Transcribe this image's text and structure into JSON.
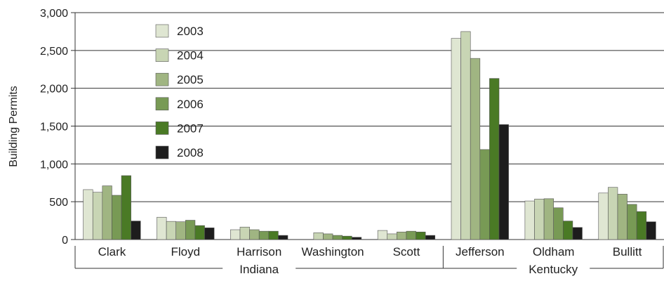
{
  "chart_data": {
    "type": "bar",
    "ylabel": "Building Permits",
    "ylim": [
      0,
      3000
    ],
    "yticks": [
      0,
      500,
      1000,
      1500,
      2000,
      2500,
      3000
    ],
    "ytick_labels": [
      "0",
      "500",
      "1,000",
      "1,500",
      "2,000",
      "2,500",
      "3,000"
    ],
    "grid": true,
    "legend_position": "top-left",
    "categories": [
      "Clark",
      "Floyd",
      "Harrison",
      "Washington",
      "Scott",
      "Jefferson",
      "Oldham",
      "Bullitt"
    ],
    "groups": [
      {
        "label": "Indiana",
        "categories": [
          "Clark",
          "Floyd",
          "Harrison",
          "Washington",
          "Scott"
        ]
      },
      {
        "label": "Kentucky",
        "categories": [
          "Jefferson",
          "Oldham",
          "Bullitt"
        ]
      }
    ],
    "series": [
      {
        "name": "2003",
        "color": "#dfe6d2",
        "values": [
          660,
          295,
          130,
          0,
          120,
          2660,
          510,
          615
        ]
      },
      {
        "name": "2004",
        "color": "#c8d5b4",
        "values": [
          625,
          240,
          165,
          90,
          75,
          2750,
          535,
          690
        ]
      },
      {
        "name": "2005",
        "color": "#a0b582",
        "values": [
          710,
          235,
          130,
          75,
          100,
          2395,
          540,
          600
        ]
      },
      {
        "name": "2006",
        "color": "#789a55",
        "values": [
          585,
          255,
          110,
          55,
          110,
          1190,
          420,
          465
        ]
      },
      {
        "name": "2007",
        "color": "#4a7a25",
        "values": [
          845,
          185,
          110,
          45,
          100,
          2130,
          245,
          370
        ]
      },
      {
        "name": "2008",
        "color": "#1d1d1d",
        "values": [
          245,
          155,
          55,
          30,
          55,
          1520,
          160,
          235
        ]
      }
    ]
  }
}
